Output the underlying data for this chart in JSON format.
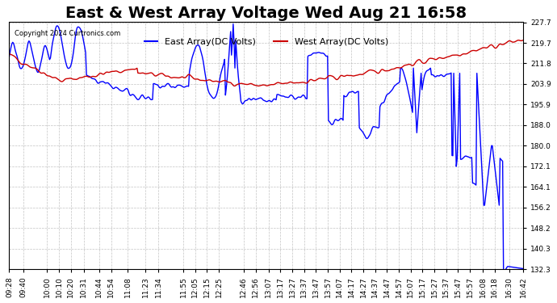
{
  "title": "East & West Array Voltage Wed Aug 21 16:58",
  "copyright": "Copyright 2024 Curtronics.com",
  "legend_east": "East Array(DC Volts)",
  "legend_west": "West Array(DC Volts)",
  "east_color": "#0000ff",
  "west_color": "#cc0000",
  "background_color": "#ffffff",
  "grid_color": "#aaaaaa",
  "ylim": [
    132.3,
    227.7
  ],
  "yticks": [
    132.3,
    140.3,
    148.2,
    156.2,
    164.1,
    172.1,
    180.0,
    188.0,
    195.9,
    203.9,
    211.8,
    219.7,
    227.7
  ],
  "xtick_labels": [
    "09:28",
    "09:40",
    "10:00",
    "10:10",
    "10:20",
    "10:31",
    "10:44",
    "10:54",
    "11:08",
    "11:23",
    "11:34",
    "11:55",
    "12:05",
    "12:15",
    "12:25",
    "12:46",
    "12:56",
    "13:07",
    "13:17",
    "13:27",
    "13:37",
    "13:47",
    "13:57",
    "14:07",
    "14:17",
    "14:27",
    "14:37",
    "14:47",
    "14:57",
    "15:07",
    "15:17",
    "15:27",
    "15:37",
    "15:47",
    "15:57",
    "16:08",
    "16:18",
    "16:30",
    "16:42"
  ],
  "title_fontsize": 14,
  "tick_fontsize": 6.5,
  "line_width": 1.0
}
